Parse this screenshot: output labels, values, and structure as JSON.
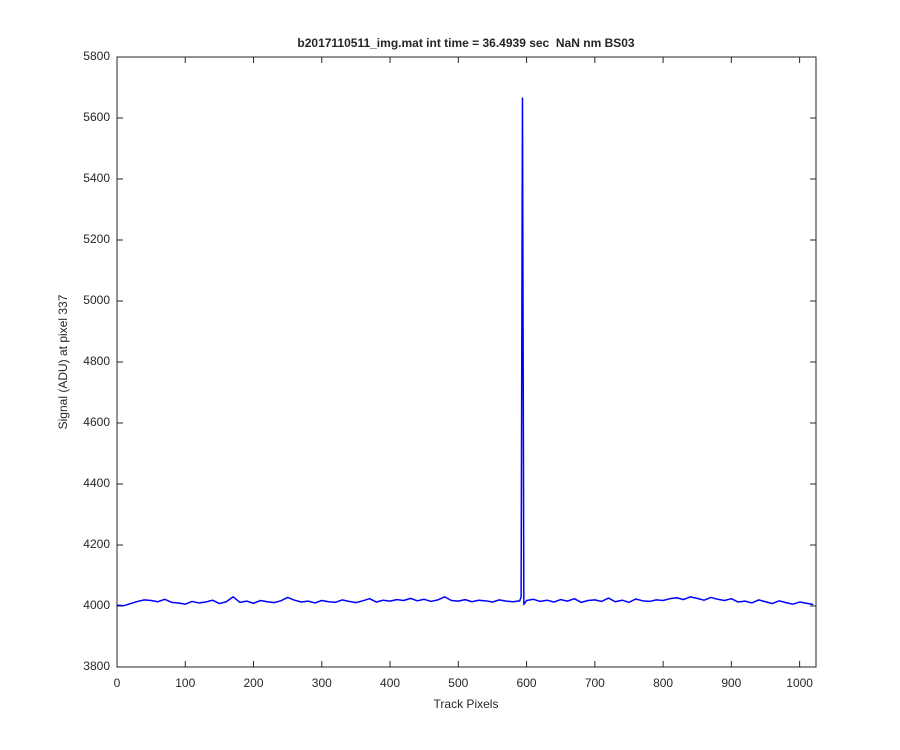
{
  "chart_data": {
    "type": "line",
    "title": "b2017110511_img.mat int time = 36.4939 sec  NaN nm BS03",
    "x_label": "Track Pixels",
    "y_label": "Signal (ADU) at pixel 337",
    "x": [
      0,
      10,
      20,
      30,
      40,
      50,
      60,
      70,
      80,
      90,
      100,
      110,
      120,
      130,
      140,
      150,
      160,
      170,
      180,
      190,
      200,
      210,
      220,
      230,
      240,
      250,
      260,
      270,
      280,
      290,
      300,
      310,
      320,
      330,
      340,
      350,
      360,
      370,
      380,
      390,
      400,
      410,
      420,
      430,
      440,
      450,
      460,
      470,
      480,
      490,
      500,
      510,
      520,
      530,
      540,
      550,
      560,
      570,
      580,
      590,
      592,
      594,
      596,
      600,
      610,
      620,
      630,
      640,
      650,
      660,
      670,
      680,
      690,
      700,
      710,
      720,
      730,
      740,
      750,
      760,
      770,
      780,
      790,
      800,
      810,
      820,
      830,
      840,
      850,
      860,
      870,
      880,
      890,
      900,
      910,
      920,
      930,
      940,
      950,
      960,
      970,
      980,
      990,
      1000,
      1010,
      1020
    ],
    "series": [
      {
        "name": "signal",
        "color": "#0000ff",
        "values": [
          4003,
          4001,
          4008,
          4015,
          4020,
          4018,
          4014,
          4022,
          4012,
          4010,
          4006,
          4015,
          4010,
          4013,
          4019,
          4008,
          4014,
          4030,
          4012,
          4016,
          4009,
          4018,
          4014,
          4011,
          4017,
          4028,
          4019,
          4013,
          4016,
          4010,
          4018,
          4014,
          4012,
          4020,
          4015,
          4011,
          4017,
          4024,
          4013,
          4019,
          4016,
          4021,
          4018,
          4025,
          4017,
          4022,
          4015,
          4020,
          4030,
          4018,
          4016,
          4021,
          4014,
          4019,
          4017,
          4013,
          4020,
          4016,
          4014,
          4017,
          4030,
          5665,
          4005,
          4018,
          4022,
          4015,
          4019,
          4013,
          4021,
          4016,
          4024,
          4012,
          4018,
          4020,
          4015,
          4026,
          4014,
          4019,
          4012,
          4023,
          4017,
          4015,
          4020,
          4018,
          4024,
          4027,
          4021,
          4030,
          4025,
          4019,
          4028,
          4022,
          4018,
          4024,
          4013,
          4016,
          4010,
          4020,
          4014,
          4008,
          4017,
          4011,
          4006,
          4013,
          4009,
          4005
        ]
      }
    ],
    "xlim": [
      0,
      1024
    ],
    "xticks": [
      0,
      100,
      200,
      300,
      400,
      500,
      600,
      700,
      800,
      900,
      1000
    ],
    "ylim": [
      3800,
      5800
    ],
    "yticks": [
      3800,
      4000,
      4200,
      4400,
      4600,
      4800,
      5000,
      5200,
      5400,
      5600,
      5800
    ],
    "grid": false
  }
}
